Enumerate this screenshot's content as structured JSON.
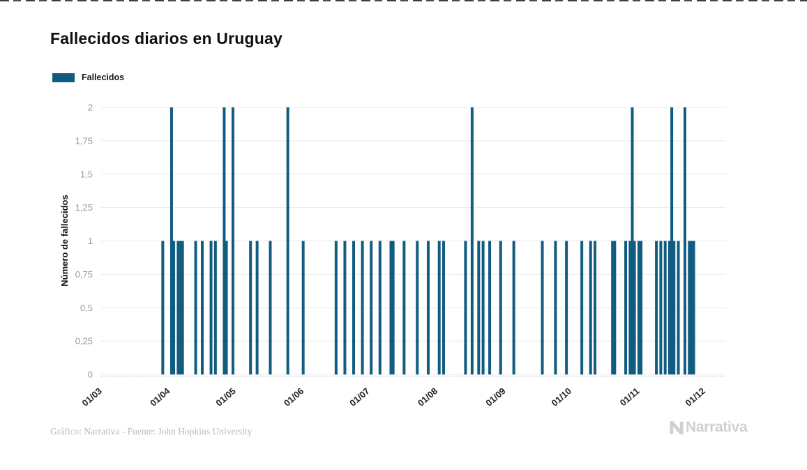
{
  "title": "Fallecidos diarios en Uruguay",
  "legend": {
    "label": "Fallecidos",
    "color": "#115c80"
  },
  "footer": {
    "credit": "Gráfico: Narrativa - Fuente: John Hopkins University"
  },
  "logo": {
    "text": "Narrativa"
  },
  "colors": {
    "bar": "#115c80",
    "grid": "#e9e9e9",
    "axis_dots": "#cccccc",
    "ytick_text": "#9a9a9a",
    "xtick_text": "#222222"
  },
  "chart_data": {
    "type": "bar",
    "title": "Fallecidos diarios en Uruguay",
    "xlabel": "",
    "ylabel": "Número de fallecidos",
    "ylim": [
      0,
      2
    ],
    "grid": true,
    "legend_position": "top-left",
    "y_ticks": {
      "labels": [
        "0",
        "0,25",
        "0,5",
        "0,75",
        "1",
        "1,25",
        "1,5",
        "1,75",
        "2"
      ],
      "values": [
        0,
        0.25,
        0.5,
        0.75,
        1,
        1.25,
        1.5,
        1.75,
        2
      ]
    },
    "x_ticks": {
      "labels": [
        "01/03",
        "01/04",
        "01/05",
        "01/06",
        "01/07",
        "01/08",
        "01/09",
        "01/10",
        "01/11",
        "01/12"
      ],
      "dates": [
        "2020-03-01",
        "2020-04-01",
        "2020-05-01",
        "2020-06-01",
        "2020-07-01",
        "2020-08-01",
        "2020-09-01",
        "2020-10-01",
        "2020-11-01",
        "2020-12-01"
      ]
    },
    "series": [
      {
        "name": "Fallecidos",
        "color": "#115c80",
        "points": [
          {
            "date": "2020-03-31",
            "value": 1
          },
          {
            "date": "2020-04-04",
            "value": 2
          },
          {
            "date": "2020-04-05",
            "value": 1
          },
          {
            "date": "2020-04-07",
            "value": 1
          },
          {
            "date": "2020-04-08",
            "value": 1
          },
          {
            "date": "2020-04-09",
            "value": 1
          },
          {
            "date": "2020-04-15",
            "value": 1
          },
          {
            "date": "2020-04-18",
            "value": 1
          },
          {
            "date": "2020-04-22",
            "value": 1
          },
          {
            "date": "2020-04-24",
            "value": 1
          },
          {
            "date": "2020-04-28",
            "value": 2
          },
          {
            "date": "2020-04-29",
            "value": 1
          },
          {
            "date": "2020-05-02",
            "value": 2
          },
          {
            "date": "2020-05-10",
            "value": 1
          },
          {
            "date": "2020-05-13",
            "value": 1
          },
          {
            "date": "2020-05-19",
            "value": 1
          },
          {
            "date": "2020-05-27",
            "value": 2
          },
          {
            "date": "2020-06-03",
            "value": 1
          },
          {
            "date": "2020-06-18",
            "value": 1
          },
          {
            "date": "2020-06-22",
            "value": 1
          },
          {
            "date": "2020-06-26",
            "value": 1
          },
          {
            "date": "2020-06-30",
            "value": 1
          },
          {
            "date": "2020-07-04",
            "value": 1
          },
          {
            "date": "2020-07-08",
            "value": 1
          },
          {
            "date": "2020-07-13",
            "value": 1
          },
          {
            "date": "2020-07-14",
            "value": 1
          },
          {
            "date": "2020-07-19",
            "value": 1
          },
          {
            "date": "2020-07-25",
            "value": 1
          },
          {
            "date": "2020-07-30",
            "value": 1
          },
          {
            "date": "2020-08-04",
            "value": 1
          },
          {
            "date": "2020-08-06",
            "value": 1
          },
          {
            "date": "2020-08-16",
            "value": 1
          },
          {
            "date": "2020-08-19",
            "value": 2
          },
          {
            "date": "2020-08-22",
            "value": 1
          },
          {
            "date": "2020-08-24",
            "value": 1
          },
          {
            "date": "2020-08-27",
            "value": 1
          },
          {
            "date": "2020-09-01",
            "value": 1
          },
          {
            "date": "2020-09-07",
            "value": 1
          },
          {
            "date": "2020-09-20",
            "value": 1
          },
          {
            "date": "2020-09-26",
            "value": 1
          },
          {
            "date": "2020-10-01",
            "value": 1
          },
          {
            "date": "2020-10-08",
            "value": 1
          },
          {
            "date": "2020-10-12",
            "value": 1
          },
          {
            "date": "2020-10-14",
            "value": 1
          },
          {
            "date": "2020-10-22",
            "value": 1
          },
          {
            "date": "2020-10-23",
            "value": 1
          },
          {
            "date": "2020-10-28",
            "value": 1
          },
          {
            "date": "2020-10-30",
            "value": 1
          },
          {
            "date": "2020-10-31",
            "value": 2
          },
          {
            "date": "2020-11-01",
            "value": 1
          },
          {
            "date": "2020-11-03",
            "value": 1
          },
          {
            "date": "2020-11-04",
            "value": 1
          },
          {
            "date": "2020-11-11",
            "value": 1
          },
          {
            "date": "2020-11-13",
            "value": 1
          },
          {
            "date": "2020-11-15",
            "value": 1
          },
          {
            "date": "2020-11-17",
            "value": 1
          },
          {
            "date": "2020-11-18",
            "value": 2
          },
          {
            "date": "2020-11-19",
            "value": 1
          },
          {
            "date": "2020-11-21",
            "value": 1
          },
          {
            "date": "2020-11-24",
            "value": 2
          },
          {
            "date": "2020-11-26",
            "value": 1
          },
          {
            "date": "2020-11-27",
            "value": 1
          },
          {
            "date": "2020-11-28",
            "value": 1
          }
        ]
      }
    ]
  }
}
